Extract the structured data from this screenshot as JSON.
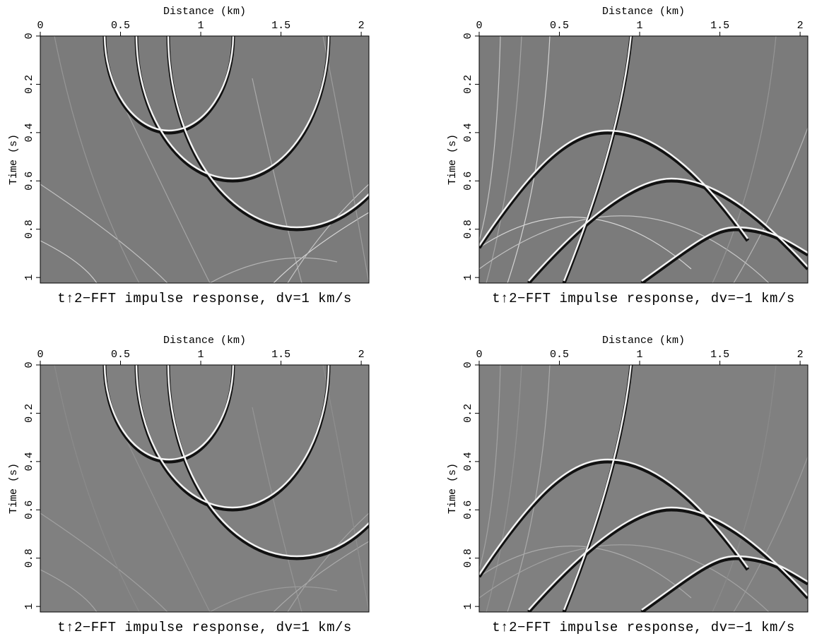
{
  "chart_data": [
    {
      "type": "image",
      "title": "t↑2−FFT impulse response, dv=1 km/s",
      "xlabel": "Distance (km)",
      "ylabel": "Time (s)",
      "xlim": [
        0,
        2.048
      ],
      "ylim": [
        0,
        1.023
      ],
      "xticks": [
        0,
        0.5,
        1,
        1.5,
        2
      ],
      "yticks": [
        0,
        0.2,
        0.4,
        0.6,
        0.8,
        1
      ]
    },
    {
      "type": "image",
      "title": "t↑2−FFT impulse response, dv=−1 km/s",
      "xlabel": "Distance (km)",
      "ylabel": "Time (s)",
      "xlim": [
        0,
        2.048
      ],
      "ylim": [
        0,
        1.023
      ],
      "xticks": [
        0,
        0.5,
        1,
        1.5,
        2
      ],
      "yticks": [
        0,
        0.2,
        0.4,
        0.6,
        0.8,
        1
      ]
    },
    {
      "type": "image",
      "title": "t↑2−FFT impulse response, dv=1 km/s",
      "xlabel": "Distance (km)",
      "ylabel": "Time (s)",
      "xlim": [
        0,
        2.048
      ],
      "ylim": [
        0,
        1.023
      ],
      "xticks": [
        0,
        0.5,
        1,
        1.5,
        2
      ],
      "yticks": [
        0,
        0.2,
        0.4,
        0.6,
        0.8,
        1
      ]
    },
    {
      "type": "image",
      "title": "t↑2−FFT impulse response, dv=−1 km/s",
      "xlabel": "Distance (km)",
      "ylabel": "Time (s)",
      "xlim": [
        0,
        2.048
      ],
      "ylim": [
        0,
        1.023
      ],
      "xticks": [
        0,
        0.5,
        1,
        1.5,
        2
      ],
      "yticks": [
        0,
        0.2,
        0.4,
        0.6,
        0.8,
        1
      ]
    }
  ]
}
